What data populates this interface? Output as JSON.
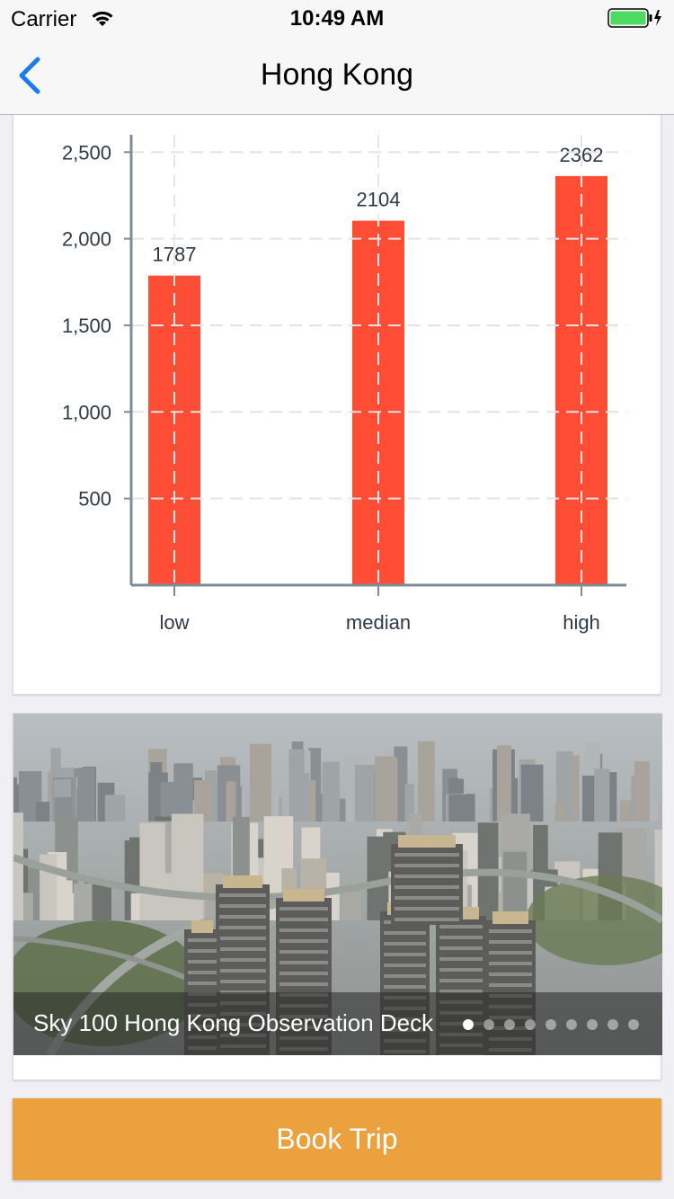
{
  "status_bar": {
    "carrier": "Carrier",
    "time": "10:49 AM",
    "battery_color": "#4cd964"
  },
  "nav": {
    "title": "Hong Kong",
    "back_icon": "chevron-left-icon",
    "accent": "#1a7cf5"
  },
  "chart_data": {
    "type": "bar",
    "categories": [
      "low",
      "median",
      "high"
    ],
    "values": [
      1787,
      2104,
      2362
    ],
    "data_labels": [
      "1787",
      "2104",
      "2362"
    ],
    "ylim": [
      0,
      2600
    ],
    "yticks": [
      500,
      1000,
      1500,
      2000,
      2500
    ],
    "ytick_labels": [
      "500",
      "1,000",
      "1,500",
      "2,000",
      "2,500"
    ],
    "grid": true,
    "bar_color": "#ff4d36"
  },
  "photo": {
    "caption": "Sky 100 Hong Kong Observation Deck",
    "page_count": 9,
    "active_page": 0
  },
  "book_button": {
    "label": "Book Trip",
    "color": "#eba13d"
  }
}
